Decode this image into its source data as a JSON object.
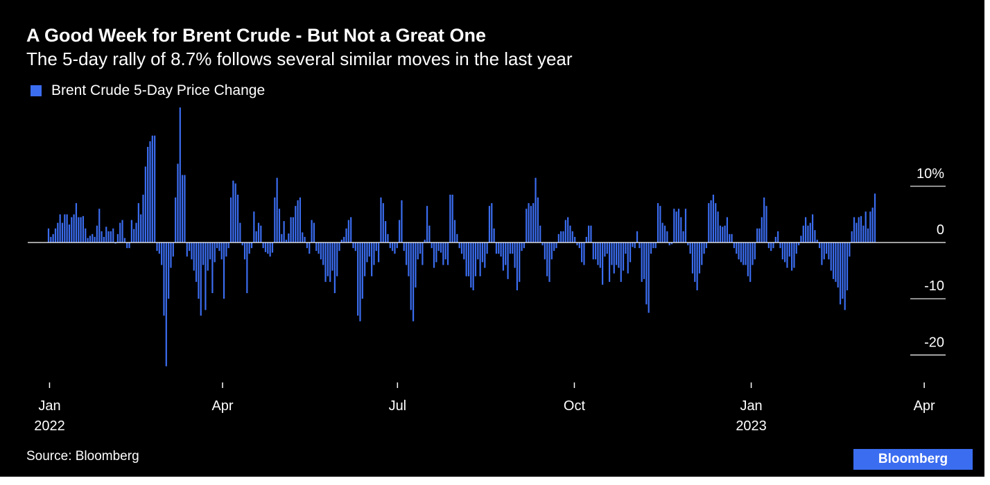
{
  "colors": {
    "background": "#000000",
    "bar": "#3b6df0",
    "text": "#ffffff",
    "axis": "#ffffff",
    "brand_bg": "#3b6df0"
  },
  "header": {
    "title": "A Good Week for Brent Crude - But Not a Great One",
    "subtitle": "The 5-day rally of 8.7% follows several similar moves in the last year"
  },
  "legend": {
    "label": "Brent Crude 5-Day Price Change"
  },
  "footer": {
    "source": "Source: Bloomberg",
    "brand": "Bloomberg"
  },
  "chart_data": {
    "type": "bar",
    "title": "A Good Week for Brent Crude - But Not a Great One",
    "subtitle": "The 5-day rally of 8.7% follows several similar moves in the last year",
    "series": [
      {
        "name": "Brent Crude 5-Day Price Change",
        "color": "#3b6df0"
      }
    ],
    "x_start": "2022-01-03",
    "x_end": "2023-04-06",
    "x_unit": "trading days",
    "y_unit": "%",
    "y_ticks": [
      {
        "value": 10,
        "label": "10%"
      },
      {
        "value": 0,
        "label": "0"
      },
      {
        "value": -10,
        "label": "-10"
      },
      {
        "value": -20,
        "label": "-20"
      }
    ],
    "ylim": [
      -22,
      24
    ],
    "x_ticks": [
      {
        "date": "2022-01-01",
        "label": "Jan",
        "year": "2022"
      },
      {
        "date": "2022-04-01",
        "label": "Apr",
        "year": ""
      },
      {
        "date": "2022-07-01",
        "label": "Jul",
        "year": ""
      },
      {
        "date": "2022-10-01",
        "label": "Oct",
        "year": ""
      },
      {
        "date": "2023-01-01",
        "label": "Jan",
        "year": "2023"
      },
      {
        "date": "2023-04-01",
        "label": "Apr",
        "year": ""
      }
    ],
    "values": [
      2.5,
      1,
      1.5,
      2.5,
      3.5,
      5,
      3.5,
      5,
      5,
      3.2,
      4.5,
      5,
      7,
      4.5,
      4.5,
      4.7,
      2.5,
      0.8,
      1.2,
      1.5,
      1,
      3,
      6,
      2,
      1,
      2.8,
      2,
      2,
      2.5,
      -0.2,
      1.5,
      3.5,
      4,
      0.8,
      -1,
      -1,
      4,
      2.4,
      3.5,
      7,
      5,
      8.5,
      13.5,
      17,
      18,
      19,
      19,
      -1.5,
      -2,
      -4,
      -13,
      -22,
      -10,
      -4.5,
      -2.5,
      8,
      14,
      24,
      12,
      12,
      -2.5,
      -1.5,
      -3,
      -5,
      -7,
      -10,
      -13,
      -4,
      -12,
      -5,
      -3,
      -9,
      -3.5,
      -1,
      -1.5,
      -3,
      -10,
      -2.5,
      -1,
      8,
      11,
      10.5,
      8.5,
      3.5,
      -0.5,
      -3,
      -9,
      -2,
      -1,
      5.5,
      2,
      3.5,
      3,
      -1,
      -1.7,
      -2,
      -2.5,
      -1.8,
      8,
      11.5,
      6,
      1.5,
      3.8,
      0.5,
      1.6,
      4.5,
      4.5,
      6.5,
      7.5,
      8,
      1.8,
      1,
      -1,
      -2,
      4,
      3.5,
      -1.5,
      -2,
      -3,
      -4,
      -7,
      -6,
      -7,
      -5,
      -9,
      -6,
      -1.5,
      0.5,
      1,
      2.5,
      4,
      4.5,
      -1,
      -1.5,
      -13,
      -14,
      -10,
      -6,
      -3.5,
      -2.5,
      -6,
      -4,
      -1.5,
      -3.5,
      8,
      7,
      3.8,
      1.5,
      -1,
      -1.5,
      -2,
      -1,
      4,
      7.5,
      -1.5,
      -4,
      -6,
      -12,
      -14,
      -8,
      -3,
      -2,
      -4,
      0.5,
      6.5,
      3,
      -1,
      -4.5,
      -3.5,
      -1.5,
      -1.8,
      -4,
      -3,
      -4,
      8.5,
      8.5,
      4,
      1.5,
      -1,
      -2,
      -3,
      -6,
      -6,
      -8,
      -8.5,
      -6,
      -3,
      -6,
      -3.5,
      -4.5,
      -2,
      6.5,
      7,
      2.5,
      -2,
      -2,
      -2.5,
      -5,
      -4,
      -6.5,
      -2,
      -2,
      -4.5,
      -8.5,
      -7,
      -1.5,
      -1,
      6,
      7,
      6.5,
      7,
      11.5,
      8,
      3,
      -0.5,
      -3,
      -6,
      -7,
      -3,
      -1.5,
      -1,
      1.5,
      2,
      2,
      4,
      4.5,
      3,
      2,
      1,
      -0.5,
      -1,
      -3.5,
      -4,
      1,
      3,
      3,
      -3,
      -3,
      -4,
      -4.5,
      -7.5,
      -2.5,
      -2,
      -7,
      -4,
      -5.5,
      -4,
      -4.5,
      -7,
      -5,
      -2,
      -5.5,
      -3.5,
      -0.8,
      -1,
      2,
      -1,
      -7,
      -6.5,
      -11,
      -12.5,
      -2,
      -1,
      -1,
      7,
      6.5,
      3.5,
      3,
      2,
      -0.5,
      -0.3,
      6,
      5.5,
      6,
      4.5,
      2,
      6,
      -0.5,
      -2,
      -5.5,
      -7,
      -8.5,
      -5.5,
      -4,
      -2,
      -1,
      7,
      7.5,
      8.5,
      7,
      5.5,
      3,
      2.8,
      3,
      4.5,
      1.5,
      1.5,
      -1,
      -2,
      -3,
      -3.5,
      -4,
      -4,
      -6,
      -7,
      -4,
      -3,
      2.5,
      2.5,
      4.5,
      8,
      6.5,
      -1,
      -1.5,
      -1,
      1,
      2,
      -1,
      -3,
      -3.5,
      -4.5,
      -2.5,
      -5,
      -4.5,
      -2,
      -0.5,
      1.2,
      3,
      4.5,
      3,
      3.5,
      5,
      2.2,
      0.5,
      -1,
      -4,
      -3,
      -2,
      -3,
      -5,
      -6.5,
      -7,
      -8,
      -11,
      -10,
      -12,
      -8.5,
      -2.5,
      2,
      4.5,
      3.5,
      4.5,
      4.7,
      3,
      5.5,
      2.5,
      5.5,
      6.2,
      8.7
    ]
  }
}
